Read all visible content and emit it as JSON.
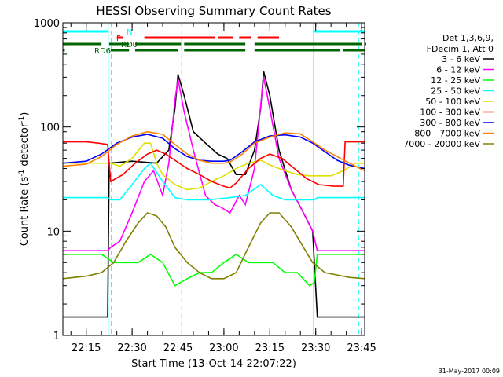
{
  "chart_data": {
    "type": "line",
    "title": "HESSI Observing Summary Count Rates",
    "xlabel": "Start Time (13-Oct-14 22:07:22)",
    "ylabel_parts": [
      "Count Rate (s",
      "-1",
      " detector",
      "-1",
      ")"
    ],
    "y_scale": "log",
    "ylim": [
      1,
      1000
    ],
    "y_ticks": [
      {
        "value": 1,
        "label": "1"
      },
      {
        "value": 10,
        "label": "10"
      },
      {
        "value": 100,
        "label": "100"
      },
      {
        "value": 1000,
        "label": "1000"
      }
    ],
    "xlim_minutes": [
      7.37,
      106.0
    ],
    "x_ticks": [
      {
        "minute": 15,
        "label": "22:15"
      },
      {
        "minute": 30,
        "label": "22:30"
      },
      {
        "minute": 45,
        "label": "22:45"
      },
      {
        "minute": 60,
        "label": "23:00"
      },
      {
        "minute": 75,
        "label": "23:15"
      },
      {
        "minute": 90,
        "label": "23:30"
      },
      {
        "minute": 105,
        "label": "23:45"
      }
    ],
    "legend": {
      "placement": "right",
      "header": [
        "Det 1,3,6,9,",
        "FDecim 1, Att 0"
      ]
    },
    "series": [
      {
        "name": "3 - 6 keV",
        "color": "#000000",
        "points": [
          [
            7.4,
            1.5
          ],
          [
            22,
            1.5
          ],
          [
            22.5,
            45
          ],
          [
            30,
            47
          ],
          [
            38,
            45
          ],
          [
            42,
            60
          ],
          [
            44,
            150
          ],
          [
            45,
            320
          ],
          [
            47,
            200
          ],
          [
            50,
            90
          ],
          [
            54,
            70
          ],
          [
            58,
            55
          ],
          [
            61,
            50
          ],
          [
            64,
            35
          ],
          [
            67,
            35
          ],
          [
            70,
            60
          ],
          [
            72,
            150
          ],
          [
            73,
            340
          ],
          [
            75,
            200
          ],
          [
            78,
            60
          ],
          [
            82,
            25
          ],
          [
            86,
            15
          ],
          [
            89,
            10
          ],
          [
            90.5,
            1.5
          ],
          [
            106,
            1.5
          ]
        ]
      },
      {
        "name": "6 - 12 keV",
        "color": "#ff00ff",
        "points": [
          [
            7.4,
            6.5
          ],
          [
            22,
            6.5
          ],
          [
            23,
            7
          ],
          [
            26,
            8
          ],
          [
            30,
            15
          ],
          [
            34,
            30
          ],
          [
            37,
            38
          ],
          [
            40,
            22
          ],
          [
            42,
            45
          ],
          [
            44,
            180
          ],
          [
            45,
            290
          ],
          [
            47,
            140
          ],
          [
            50,
            60
          ],
          [
            54,
            22
          ],
          [
            57,
            18
          ],
          [
            59,
            17
          ],
          [
            62,
            15
          ],
          [
            65,
            22
          ],
          [
            67,
            18
          ],
          [
            70,
            40
          ],
          [
            72,
            160
          ],
          [
            73,
            300
          ],
          [
            75,
            150
          ],
          [
            78,
            50
          ],
          [
            82,
            25
          ],
          [
            86,
            15
          ],
          [
            89,
            10
          ],
          [
            90.5,
            6.5
          ],
          [
            106,
            6.5
          ]
        ]
      },
      {
        "name": "12 - 25 keV",
        "color": "#00ff00",
        "points": [
          [
            7.4,
            6
          ],
          [
            20,
            6
          ],
          [
            24,
            5
          ],
          [
            28,
            5
          ],
          [
            32,
            5
          ],
          [
            36,
            6
          ],
          [
            40,
            5
          ],
          [
            44,
            3
          ],
          [
            48,
            3.5
          ],
          [
            52,
            4
          ],
          [
            56,
            4
          ],
          [
            60,
            5
          ],
          [
            64,
            6
          ],
          [
            68,
            5
          ],
          [
            72,
            5
          ],
          [
            76,
            5
          ],
          [
            80,
            4
          ],
          [
            84,
            4
          ],
          [
            88,
            3
          ],
          [
            89.5,
            3.2
          ],
          [
            90.5,
            6
          ],
          [
            106,
            6
          ]
        ]
      },
      {
        "name": "25 - 50 keV",
        "color": "#00ffff",
        "points": [
          [
            7.4,
            21
          ],
          [
            22,
            21
          ],
          [
            23,
            20
          ],
          [
            26,
            20
          ],
          [
            30,
            28
          ],
          [
            34,
            40
          ],
          [
            36,
            45
          ],
          [
            40,
            30
          ],
          [
            44,
            21
          ],
          [
            48,
            20
          ],
          [
            55,
            20
          ],
          [
            62,
            21
          ],
          [
            67,
            22
          ],
          [
            72,
            28
          ],
          [
            76,
            22
          ],
          [
            80,
            20
          ],
          [
            84,
            20
          ],
          [
            88,
            20
          ],
          [
            89.5,
            20
          ],
          [
            90.5,
            21
          ],
          [
            106,
            21
          ]
        ]
      },
      {
        "name": "50 - 100 keV",
        "color": "#e0e000",
        "points": [
          [
            7.4,
            45
          ],
          [
            22,
            45
          ],
          [
            23,
            45
          ],
          [
            26,
            42
          ],
          [
            30,
            50
          ],
          [
            34,
            70
          ],
          [
            36,
            70
          ],
          [
            38,
            45
          ],
          [
            40,
            35
          ],
          [
            44,
            28
          ],
          [
            48,
            25
          ],
          [
            52,
            26
          ],
          [
            56,
            30
          ],
          [
            60,
            34
          ],
          [
            64,
            40
          ],
          [
            68,
            45
          ],
          [
            72,
            48
          ],
          [
            76,
            42
          ],
          [
            80,
            38
          ],
          [
            84,
            35
          ],
          [
            88,
            34
          ],
          [
            90,
            34
          ],
          [
            95,
            34
          ],
          [
            99,
            38
          ],
          [
            103,
            45
          ],
          [
            106,
            45
          ]
        ]
      },
      {
        "name": "100 - 300 keV",
        "color": "#ff0000",
        "points": [
          [
            7.4,
            72
          ],
          [
            15,
            72
          ],
          [
            19,
            70
          ],
          [
            22,
            68
          ],
          [
            23,
            30
          ],
          [
            27,
            35
          ],
          [
            31,
            45
          ],
          [
            35,
            55
          ],
          [
            38,
            60
          ],
          [
            41,
            55
          ],
          [
            44,
            48
          ],
          [
            48,
            40
          ],
          [
            52,
            35
          ],
          [
            56,
            30
          ],
          [
            60,
            27
          ],
          [
            62,
            26
          ],
          [
            64,
            29
          ],
          [
            68,
            40
          ],
          [
            72,
            50
          ],
          [
            75,
            55
          ],
          [
            79,
            50
          ],
          [
            83,
            40
          ],
          [
            87,
            32
          ],
          [
            91,
            28
          ],
          [
            96,
            27
          ],
          [
            99,
            27
          ],
          [
            99.6,
            72
          ],
          [
            106,
            72
          ]
        ]
      },
      {
        "name": "300 - 800 keV",
        "color": "#0000ff",
        "points": [
          [
            7.4,
            45
          ],
          [
            15,
            47
          ],
          [
            20,
            55
          ],
          [
            25,
            70
          ],
          [
            30,
            80
          ],
          [
            35,
            85
          ],
          [
            40,
            78
          ],
          [
            44,
            62
          ],
          [
            48,
            52
          ],
          [
            52,
            48
          ],
          [
            56,
            47
          ],
          [
            60,
            47
          ],
          [
            62,
            48
          ],
          [
            66,
            58
          ],
          [
            70,
            72
          ],
          [
            75,
            82
          ],
          [
            80,
            84
          ],
          [
            85,
            80
          ],
          [
            89,
            70
          ],
          [
            93,
            58
          ],
          [
            97,
            48
          ],
          [
            101,
            43
          ],
          [
            106,
            40
          ]
        ]
      },
      {
        "name": "800 - 7000 keV",
        "color": "#ff8000",
        "points": [
          [
            7.4,
            42
          ],
          [
            15,
            44
          ],
          [
            20,
            52
          ],
          [
            25,
            68
          ],
          [
            30,
            82
          ],
          [
            35,
            90
          ],
          [
            40,
            85
          ],
          [
            44,
            68
          ],
          [
            48,
            55
          ],
          [
            52,
            48
          ],
          [
            56,
            45
          ],
          [
            60,
            45
          ],
          [
            62,
            46
          ],
          [
            66,
            55
          ],
          [
            70,
            70
          ],
          [
            75,
            80
          ],
          [
            80,
            88
          ],
          [
            85,
            86
          ],
          [
            89,
            72
          ],
          [
            93,
            60
          ],
          [
            97,
            52
          ],
          [
            101,
            45
          ],
          [
            106,
            38
          ]
        ]
      },
      {
        "name": "7000 - 20000 keV",
        "color": "#808000",
        "points": [
          [
            7.4,
            3.5
          ],
          [
            15,
            3.7
          ],
          [
            20,
            4
          ],
          [
            24,
            5
          ],
          [
            28,
            8
          ],
          [
            32,
            12
          ],
          [
            35,
            15
          ],
          [
            38,
            14
          ],
          [
            41,
            11
          ],
          [
            44,
            7
          ],
          [
            48,
            5
          ],
          [
            52,
            4
          ],
          [
            56,
            3.5
          ],
          [
            60,
            3.5
          ],
          [
            64,
            4
          ],
          [
            68,
            7
          ],
          [
            72,
            12
          ],
          [
            75,
            15
          ],
          [
            78,
            15
          ],
          [
            82,
            11
          ],
          [
            86,
            7
          ],
          [
            89,
            5
          ],
          [
            93,
            4
          ],
          [
            97,
            3.8
          ],
          [
            101,
            3.6
          ],
          [
            106,
            3.5
          ]
        ]
      }
    ],
    "state_bars": [
      {
        "label": "N",
        "color": "#00ffff",
        "segments": [
          [
            7.4,
            22.2
          ],
          [
            89.3,
            106
          ]
        ]
      },
      {
        "label": "F",
        "color": "#ff0000",
        "segments": [
          [
            25,
            27
          ],
          [
            34,
            57
          ],
          [
            58,
            63
          ],
          [
            65,
            69
          ],
          [
            71,
            78
          ]
        ]
      },
      {
        "label": "RD0",
        "color": "#006400",
        "segments": [
          [
            7.4,
            20
          ],
          [
            22.5,
            29
          ],
          [
            31,
            46
          ],
          [
            47,
            67
          ],
          [
            70,
            105
          ],
          [
            106,
            106
          ]
        ]
      },
      {
        "label": "RD6",
        "color": "#006400",
        "segments": [
          [
            7.4,
            8
          ],
          [
            23,
            29
          ],
          [
            31,
            45
          ],
          [
            47,
            67
          ],
          [
            70,
            98
          ],
          [
            99,
            106
          ]
        ]
      }
    ],
    "night_marks": [
      {
        "minute": 22.2,
        "kind": "solid"
      },
      {
        "minute": 23.2,
        "kind": "dashed"
      },
      {
        "minute": 46.2,
        "kind": "dashed"
      },
      {
        "minute": 89.3,
        "kind": "solid"
      },
      {
        "minute": 104,
        "kind": "dashed"
      }
    ],
    "footer_date": "31-May-2017 00:09"
  }
}
